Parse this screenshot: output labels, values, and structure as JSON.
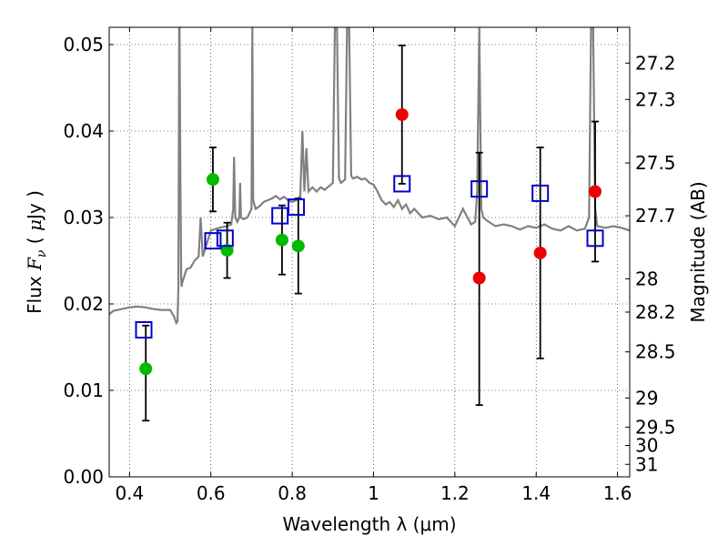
{
  "chart_data": {
    "type": "scatter",
    "title": "",
    "xlabel": "Wavelength  λ (μm)",
    "ylabel_parts": [
      "Flux  ",
      "F",
      "ν",
      "  ( ",
      "μ",
      "Jy )"
    ],
    "y2label": "Magnitude (AB)",
    "xlim": [
      0.35,
      1.63
    ],
    "ylim": [
      0.0,
      0.052
    ],
    "grid": true,
    "xticks": [
      {
        "value": 0.4,
        "label": "0.4"
      },
      {
        "value": 0.6,
        "label": "0.6"
      },
      {
        "value": 0.8,
        "label": "0.8"
      },
      {
        "value": 1.0,
        "label": "1"
      },
      {
        "value": 1.2,
        "label": "1.2"
      },
      {
        "value": 1.4,
        "label": "1.4"
      },
      {
        "value": 1.6,
        "label": "1.6"
      }
    ],
    "yticks": [
      {
        "value": 0.0,
        "label": "0.00"
      },
      {
        "value": 0.01,
        "label": "0.01"
      },
      {
        "value": 0.02,
        "label": "0.02"
      },
      {
        "value": 0.03,
        "label": "0.03"
      },
      {
        "value": 0.04,
        "label": "0.04"
      },
      {
        "value": 0.05,
        "label": "0.05"
      }
    ],
    "magnitude_ticks": [
      {
        "mag": 27.2,
        "label": "27.2"
      },
      {
        "mag": 27.3,
        "label": "27.3"
      },
      {
        "mag": 27.5,
        "label": "27.5"
      },
      {
        "mag": 27.7,
        "label": "27.7"
      },
      {
        "mag": 28.0,
        "label": "28"
      },
      {
        "mag": 28.2,
        "label": "28.2"
      },
      {
        "mag": 28.5,
        "label": "28.5"
      },
      {
        "mag": 29.0,
        "label": "29"
      },
      {
        "mag": 29.5,
        "label": "29.5"
      },
      {
        "mag": 30.0,
        "label": "30"
      },
      {
        "mag": 31.0,
        "label": "31"
      }
    ],
    "colors": {
      "model_sed": "#808080",
      "green": "#00bb00",
      "red": "#ee0000",
      "model_box": "#0000cc",
      "errorbar": "#000000"
    },
    "model_sed": {
      "x": [
        0.35,
        0.36,
        0.38,
        0.4,
        0.42,
        0.44,
        0.46,
        0.48,
        0.5,
        0.51,
        0.515,
        0.518,
        0.52,
        0.521,
        0.522,
        0.523,
        0.525,
        0.527,
        0.528,
        0.53,
        0.54,
        0.55,
        0.56,
        0.57,
        0.575,
        0.58,
        0.585,
        0.59,
        0.6,
        0.62,
        0.64,
        0.65,
        0.655,
        0.657,
        0.66,
        0.665,
        0.67,
        0.672,
        0.674,
        0.68,
        0.69,
        0.7,
        0.702,
        0.704,
        0.71,
        0.72,
        0.73,
        0.74,
        0.75,
        0.76,
        0.77,
        0.78,
        0.79,
        0.8,
        0.81,
        0.82,
        0.825,
        0.83,
        0.835,
        0.84,
        0.85,
        0.86,
        0.87,
        0.88,
        0.89,
        0.9,
        0.905,
        0.91,
        0.915,
        0.92,
        0.93,
        0.935,
        0.94,
        0.945,
        0.95,
        0.96,
        0.97,
        0.98,
        0.99,
        1.0,
        1.01,
        1.02,
        1.03,
        1.04,
        1.05,
        1.06,
        1.07,
        1.08,
        1.09,
        1.1,
        1.12,
        1.14,
        1.16,
        1.18,
        1.2,
        1.22,
        1.24,
        1.25,
        1.255,
        1.26,
        1.265,
        1.27,
        1.28,
        1.3,
        1.32,
        1.34,
        1.36,
        1.38,
        1.4,
        1.42,
        1.44,
        1.46,
        1.48,
        1.5,
        1.52,
        1.53,
        1.535,
        1.54,
        1.545,
        1.55,
        1.57,
        1.59,
        1.61,
        1.63
      ],
      "y": [
        0.0188,
        0.0192,
        0.0194,
        0.0196,
        0.0197,
        0.0196,
        0.0194,
        0.0193,
        0.0193,
        0.0185,
        0.0178,
        0.018,
        0.022,
        0.033,
        0.052,
        0.052,
        0.035,
        0.023,
        0.022,
        0.0225,
        0.024,
        0.0242,
        0.025,
        0.0255,
        0.03,
        0.0255,
        0.0262,
        0.027,
        0.0285,
        0.0288,
        0.029,
        0.0292,
        0.031,
        0.037,
        0.03,
        0.0295,
        0.03,
        0.034,
        0.03,
        0.0298,
        0.03,
        0.031,
        0.052,
        0.032,
        0.031,
        0.0313,
        0.0318,
        0.032,
        0.0322,
        0.0325,
        0.0321,
        0.0324,
        0.032,
        0.0318,
        0.032,
        0.0325,
        0.04,
        0.033,
        0.038,
        0.033,
        0.0335,
        0.033,
        0.0335,
        0.0332,
        0.0336,
        0.034,
        0.052,
        0.052,
        0.0345,
        0.034,
        0.0344,
        0.052,
        0.052,
        0.0348,
        0.0345,
        0.0347,
        0.0344,
        0.0345,
        0.034,
        0.0338,
        0.033,
        0.032,
        0.0315,
        0.0318,
        0.0312,
        0.032,
        0.031,
        0.0315,
        0.0305,
        0.031,
        0.03,
        0.0302,
        0.0298,
        0.03,
        0.029,
        0.031,
        0.0292,
        0.0295,
        0.033,
        0.052,
        0.031,
        0.03,
        0.0296,
        0.029,
        0.0292,
        0.029,
        0.0286,
        0.029,
        0.0288,
        0.0292,
        0.0287,
        0.0285,
        0.029,
        0.0285,
        0.0287,
        0.03,
        0.052,
        0.052,
        0.031,
        0.029,
        0.0288,
        0.029,
        0.0288,
        0.0285
      ]
    },
    "series": [
      {
        "marker": "circle",
        "color": "green",
        "x": [
          0.44,
          0.605,
          0.64,
          0.775,
          0.815
        ],
        "y": [
          0.0125,
          0.0344,
          0.0262,
          0.0274,
          0.0267
        ],
        "yerr_low": [
          0.0065,
          0.0307,
          0.023,
          0.0234,
          0.0212
        ],
        "yerr_high": [
          0.0175,
          0.0381,
          0.0294,
          0.0314,
          0.0322
        ]
      },
      {
        "marker": "circle",
        "color": "red",
        "x": [
          1.07,
          1.26,
          1.41,
          1.545
        ],
        "y": [
          0.0419,
          0.023,
          0.0259,
          0.033
        ],
        "yerr_low": [
          0.0339,
          0.0083,
          0.0137,
          0.0249
        ],
        "yerr_high": [
          0.0499,
          0.0375,
          0.0381,
          0.0411
        ]
      },
      {
        "marker": "square",
        "color": "model_box",
        "x": [
          0.435,
          0.605,
          0.635,
          0.77,
          0.81,
          1.07,
          1.26,
          1.41,
          1.545
        ],
        "y": [
          0.017,
          0.0273,
          0.0276,
          0.0302,
          0.0312,
          0.0339,
          0.0333,
          0.0328,
          0.0276
        ]
      }
    ]
  }
}
